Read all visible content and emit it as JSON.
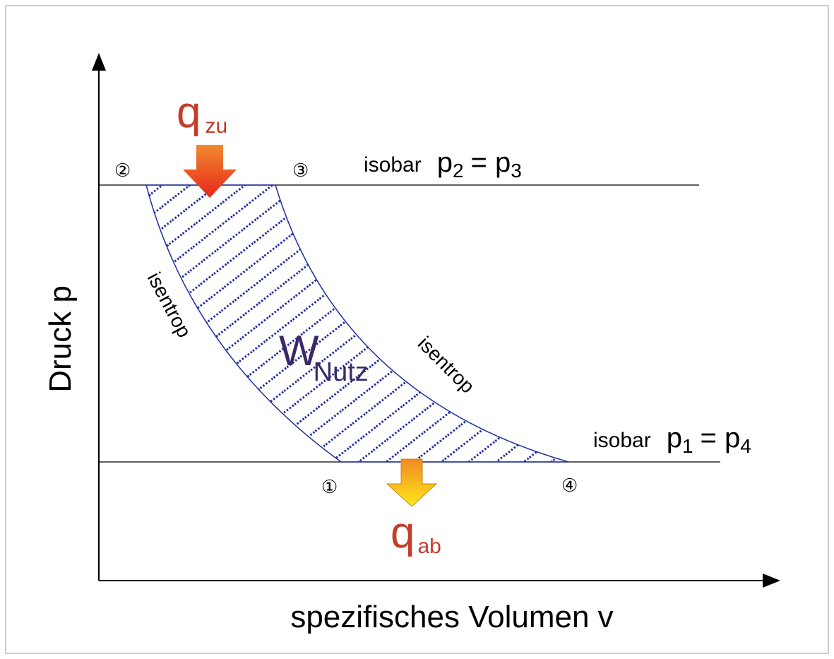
{
  "axes": {
    "y_label": "Druck p",
    "x_label": "spezifisches Volumen v"
  },
  "states": {
    "s1": "①",
    "s2": "②",
    "s3": "③",
    "s4": "④"
  },
  "heat_in": {
    "symbol": "q",
    "subscript": "zu"
  },
  "heat_out": {
    "symbol": "q",
    "subscript": "ab"
  },
  "work": {
    "symbol": "W",
    "subscript": "Nutz"
  },
  "isobar_top": {
    "label": "isobar",
    "p_left": "p",
    "sub_left": "2",
    "equals": "= p",
    "sub_right": "3"
  },
  "isobar_bottom": {
    "label": "isobar",
    "p_left": "p",
    "sub_left": "1",
    "equals": "= p",
    "sub_right": "4"
  },
  "isentrop_left": "isentrop",
  "isentrop_right": "isentrop"
}
